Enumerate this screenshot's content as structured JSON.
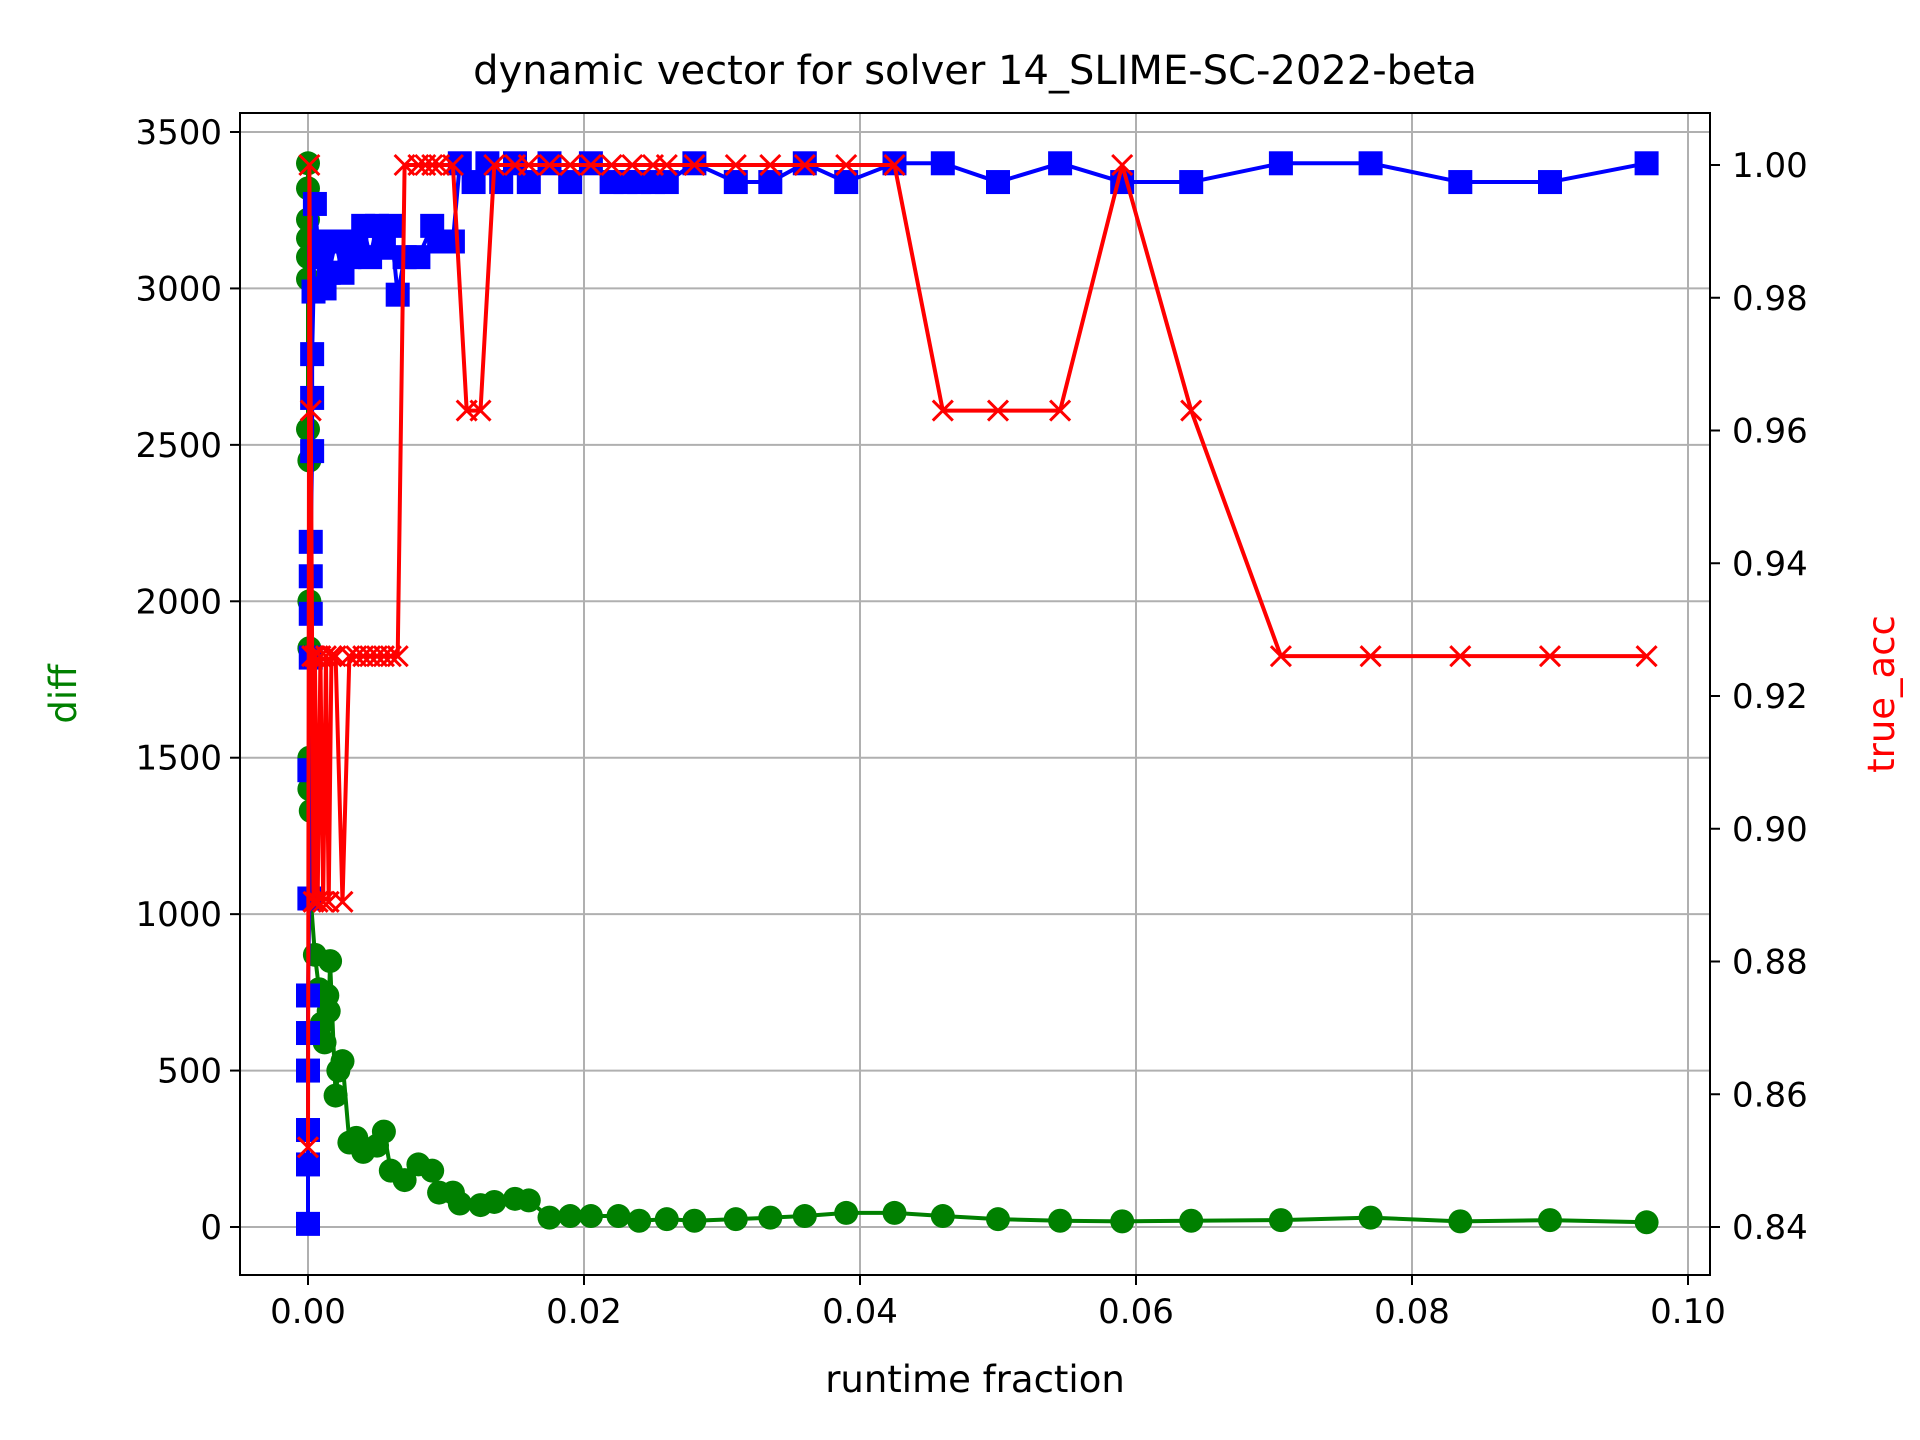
{
  "chart_data": {
    "type": "line",
    "title": "dynamic vector for solver 14_SLIME-SC-2022-beta",
    "xlabel": "runtime fraction",
    "ylabel": "diff",
    "y2label": "true_acc",
    "xlim": [
      -0.005,
      0.102
    ],
    "ylim": [
      -150,
      3560
    ],
    "y2lim": [
      0.8333,
      1.0076
    ],
    "xticks": [
      "0.00",
      "0.02",
      "0.04",
      "0.06",
      "0.08",
      "0.10"
    ],
    "yticks": [
      "0",
      "500",
      "1000",
      "1500",
      "2000",
      "2500",
      "3000",
      "3500"
    ],
    "y2ticks": [
      "0.84",
      "0.86",
      "0.88",
      "0.90",
      "0.92",
      "0.94",
      "0.96",
      "0.98",
      "1.00"
    ],
    "grid": true,
    "colors": {
      "diff": "#008000",
      "blue_series": "#0000ff",
      "true_acc": "#ff0000"
    },
    "series": [
      {
        "axis": "left",
        "color": "#008000",
        "marker": "circle",
        "points": [
          [
            0.0,
            3400
          ],
          [
            0.0,
            3320
          ],
          [
            0.0,
            3220
          ],
          [
            0.0,
            3160
          ],
          [
            0.0,
            3100
          ],
          [
            0.0,
            3030
          ],
          [
            0.0,
            2550
          ],
          [
            0.0001,
            2450
          ],
          [
            0.0001,
            2000
          ],
          [
            0.0001,
            1850
          ],
          [
            0.0001,
            1500
          ],
          [
            0.0001,
            1400
          ],
          [
            0.0002,
            1330
          ],
          [
            0.0002,
            1050
          ],
          [
            0.0005,
            870
          ],
          [
            0.0008,
            760
          ],
          [
            0.001,
            650
          ],
          [
            0.0012,
            590
          ],
          [
            0.0014,
            740
          ],
          [
            0.0015,
            690
          ],
          [
            0.0016,
            850
          ],
          [
            0.002,
            420
          ],
          [
            0.0022,
            500
          ],
          [
            0.0025,
            530
          ],
          [
            0.003,
            270
          ],
          [
            0.0035,
            285
          ],
          [
            0.004,
            240
          ],
          [
            0.005,
            260
          ],
          [
            0.0055,
            305
          ],
          [
            0.006,
            180
          ],
          [
            0.007,
            150
          ],
          [
            0.008,
            200
          ],
          [
            0.009,
            180
          ],
          [
            0.0095,
            110
          ],
          [
            0.0105,
            110
          ],
          [
            0.011,
            75
          ],
          [
            0.0125,
            70
          ],
          [
            0.0135,
            80
          ],
          [
            0.015,
            90
          ],
          [
            0.016,
            85
          ],
          [
            0.0175,
            30
          ],
          [
            0.019,
            35
          ],
          [
            0.0205,
            35
          ],
          [
            0.0225,
            35
          ],
          [
            0.024,
            20
          ],
          [
            0.026,
            25
          ],
          [
            0.028,
            20
          ],
          [
            0.031,
            25
          ],
          [
            0.0335,
            30
          ],
          [
            0.036,
            35
          ],
          [
            0.039,
            45
          ],
          [
            0.0425,
            45
          ],
          [
            0.046,
            35
          ],
          [
            0.05,
            25
          ],
          [
            0.0545,
            20
          ],
          [
            0.059,
            18
          ],
          [
            0.064,
            20
          ],
          [
            0.0705,
            22
          ],
          [
            0.077,
            30
          ],
          [
            0.0835,
            18
          ],
          [
            0.09,
            22
          ],
          [
            0.097,
            15
          ]
        ]
      },
      {
        "axis": "left",
        "color": "#0000ff",
        "marker": "square",
        "points": [
          [
            0.0,
            10
          ],
          [
            0.0,
            200
          ],
          [
            0.0,
            310
          ],
          [
            0.0,
            500
          ],
          [
            0.0,
            620
          ],
          [
            0.0,
            740
          ],
          [
            0.0001,
            1050
          ],
          [
            0.0001,
            1460
          ],
          [
            0.0002,
            1820
          ],
          [
            0.0002,
            1960
          ],
          [
            0.0002,
            2080
          ],
          [
            0.0002,
            2190
          ],
          [
            0.0003,
            2480
          ],
          [
            0.0003,
            2650
          ],
          [
            0.0003,
            2790
          ],
          [
            0.0004,
            2990
          ],
          [
            0.0005,
            3270
          ],
          [
            0.0008,
            3100
          ],
          [
            0.001,
            3150
          ],
          [
            0.0012,
            3000
          ],
          [
            0.0015,
            3050
          ],
          [
            0.002,
            3150
          ],
          [
            0.0025,
            3050
          ],
          [
            0.003,
            3100
          ],
          [
            0.0035,
            3150
          ],
          [
            0.004,
            3200
          ],
          [
            0.0045,
            3100
          ],
          [
            0.005,
            3200
          ],
          [
            0.0055,
            3130
          ],
          [
            0.006,
            3200
          ],
          [
            0.0065,
            2980
          ],
          [
            0.007,
            3100
          ],
          [
            0.008,
            3100
          ],
          [
            0.009,
            3200
          ],
          [
            0.0095,
            3150
          ],
          [
            0.0105,
            3150
          ],
          [
            0.011,
            3400
          ],
          [
            0.012,
            3340
          ],
          [
            0.013,
            3400
          ],
          [
            0.014,
            3340
          ],
          [
            0.015,
            3400
          ],
          [
            0.016,
            3340
          ],
          [
            0.0175,
            3400
          ],
          [
            0.019,
            3340
          ],
          [
            0.0205,
            3400
          ],
          [
            0.022,
            3340
          ],
          [
            0.023,
            3340
          ],
          [
            0.024,
            3340
          ],
          [
            0.025,
            3340
          ],
          [
            0.026,
            3340
          ],
          [
            0.028,
            3400
          ],
          [
            0.031,
            3340
          ],
          [
            0.0335,
            3340
          ],
          [
            0.036,
            3400
          ],
          [
            0.039,
            3340
          ],
          [
            0.0425,
            3400
          ],
          [
            0.046,
            3400
          ],
          [
            0.05,
            3340
          ],
          [
            0.0545,
            3400
          ],
          [
            0.059,
            3340
          ],
          [
            0.064,
            3340
          ],
          [
            0.0705,
            3400
          ],
          [
            0.077,
            3400
          ],
          [
            0.0835,
            3340
          ],
          [
            0.09,
            3340
          ],
          [
            0.097,
            3400
          ]
        ]
      },
      {
        "axis": "right",
        "color": "#ff0000",
        "marker": "x",
        "points": [
          [
            0.0,
            0.852
          ],
          [
            0.0001,
            1.0
          ],
          [
            0.0002,
            0.963
          ],
          [
            0.0003,
            0.926
          ],
          [
            0.0004,
            0.889
          ],
          [
            0.0005,
            0.926
          ],
          [
            0.0007,
            0.889
          ],
          [
            0.0009,
            0.926
          ],
          [
            0.0011,
            0.889
          ],
          [
            0.0013,
            0.926
          ],
          [
            0.0015,
            0.889
          ],
          [
            0.0017,
            0.926
          ],
          [
            0.002,
            0.926
          ],
          [
            0.0025,
            0.889
          ],
          [
            0.003,
            0.926
          ],
          [
            0.0035,
            0.926
          ],
          [
            0.004,
            0.926
          ],
          [
            0.0045,
            0.926
          ],
          [
            0.005,
            0.926
          ],
          [
            0.0055,
            0.926
          ],
          [
            0.006,
            0.926
          ],
          [
            0.0065,
            0.926
          ],
          [
            0.007,
            1.0
          ],
          [
            0.008,
            1.0
          ],
          [
            0.0085,
            1.0
          ],
          [
            0.009,
            1.0
          ],
          [
            0.0095,
            1.0
          ],
          [
            0.0105,
            1.0
          ],
          [
            0.0115,
            0.963
          ],
          [
            0.0125,
            0.963
          ],
          [
            0.0135,
            1.0
          ],
          [
            0.015,
            1.0
          ],
          [
            0.016,
            1.0
          ],
          [
            0.0175,
            1.0
          ],
          [
            0.019,
            1.0
          ],
          [
            0.0205,
            1.0
          ],
          [
            0.022,
            1.0
          ],
          [
            0.0235,
            1.0
          ],
          [
            0.025,
            1.0
          ],
          [
            0.026,
            1.0
          ],
          [
            0.028,
            1.0
          ],
          [
            0.031,
            1.0
          ],
          [
            0.0335,
            1.0
          ],
          [
            0.036,
            1.0
          ],
          [
            0.039,
            1.0
          ],
          [
            0.0425,
            1.0
          ],
          [
            0.046,
            0.963
          ],
          [
            0.05,
            0.963
          ],
          [
            0.0545,
            0.963
          ],
          [
            0.059,
            1.0
          ],
          [
            0.064,
            0.963
          ],
          [
            0.0705,
            0.926
          ],
          [
            0.077,
            0.926
          ],
          [
            0.0835,
            0.926
          ],
          [
            0.09,
            0.926
          ],
          [
            0.097,
            0.926
          ]
        ]
      }
    ]
  }
}
